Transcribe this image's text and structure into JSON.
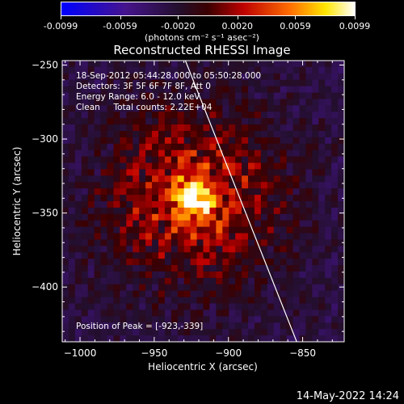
{
  "colorbar": {
    "tick_labels": [
      "-0.0099",
      "-0.0059",
      "-0.0020",
      "0.0020",
      "0.0059",
      "0.0099"
    ],
    "tick_values": [
      -0.0099,
      -0.0059,
      -0.002,
      0.002,
      0.0059,
      0.0099
    ],
    "range": [
      -0.0099,
      0.0099
    ],
    "units_label": "(photons cm⁻² s⁻¹ asec⁻²)",
    "colormap": "blue-purple-red-yellow-white"
  },
  "chart_data": {
    "type": "heatmap",
    "title": "Reconstructed RHESSI Image",
    "xlabel": "Heliocentric X (arcsec)",
    "ylabel": "Heliocentric Y (arcsec)",
    "xlim": [
      -1012,
      -822
    ],
    "ylim": [
      -437,
      -247
    ],
    "x_ticks": [
      -1000,
      -950,
      -900,
      -850
    ],
    "x_tick_labels": [
      "−1000",
      "−950",
      "−900",
      "−850"
    ],
    "y_ticks": [
      -250,
      -300,
      -350,
      -400
    ],
    "y_tick_labels": [
      "−250",
      "−300",
      "−350",
      "−400"
    ],
    "peak": {
      "x": -923,
      "y": -339
    },
    "peak_label": "Position of Peak = [-923,-339]",
    "limb_line": [
      {
        "x": -929,
        "y": -247
      },
      {
        "x": -854,
        "y": -437
      }
    ],
    "annotations": [
      "18-Sep-2012 05:44:28.000 to 05:50:28.000",
      "Detectors: 3F 5F 6F 7F 8F, Att 0",
      "Energy Range: 6.0 - 12.0 keV",
      "Clean     Total counts: 2.22E+04"
    ]
  },
  "footer": {
    "timestamp": "14-May-2022 14:24"
  }
}
